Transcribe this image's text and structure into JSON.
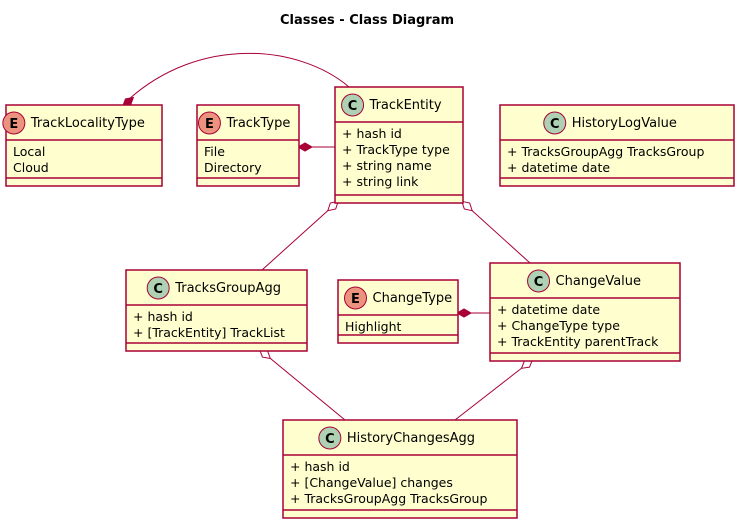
{
  "title": "Classes - Class Diagram",
  "colors": {
    "box_fill": "#FEFECE",
    "border": "#A80036",
    "class_badge": "#ADD1B2",
    "enum_badge": "#EB937F"
  },
  "nodes": [
    {
      "id": "TrackLocalityType",
      "kind": "enum",
      "badge": "E",
      "name": "TrackLocalityType",
      "members": [
        "Local",
        "Cloud"
      ]
    },
    {
      "id": "TrackType",
      "kind": "enum",
      "badge": "E",
      "name": "TrackType",
      "members": [
        "File",
        "Directory"
      ]
    },
    {
      "id": "TrackEntity",
      "kind": "class",
      "badge": "C",
      "name": "TrackEntity",
      "members": [
        "+ hash id",
        "+ TrackType type",
        "+ string name",
        "+ string link"
      ]
    },
    {
      "id": "HistoryLogValue",
      "kind": "class",
      "badge": "C",
      "name": "HistoryLogValue",
      "members": [
        "+ TracksGroupAgg TracksGroup",
        "+ datetime date"
      ]
    },
    {
      "id": "TracksGroupAgg",
      "kind": "class",
      "badge": "C",
      "name": "TracksGroupAgg",
      "members": [
        "+ hash id",
        "+ [TrackEntity] TrackList"
      ]
    },
    {
      "id": "ChangeType",
      "kind": "enum",
      "badge": "E",
      "name": "ChangeType",
      "members": [
        "Highlight"
      ]
    },
    {
      "id": "ChangeValue",
      "kind": "class",
      "badge": "C",
      "name": "ChangeValue",
      "members": [
        "+ datetime date",
        "+ ChangeType type",
        "+ TrackEntity parentTrack"
      ]
    },
    {
      "id": "HistoryChangesAgg",
      "kind": "class",
      "badge": "C",
      "name": "HistoryChangesAgg",
      "members": [
        "+ hash id",
        "+ [ChangeValue] changes",
        "+ TracksGroupAgg TracksGroup"
      ]
    }
  ],
  "edges": [
    {
      "from": "TrackLocalityType",
      "to": "TrackEntity",
      "kind": "composition"
    },
    {
      "from": "TrackType",
      "to": "TrackEntity",
      "kind": "composition"
    },
    {
      "from": "TrackEntity",
      "to": "TracksGroupAgg",
      "kind": "aggregation"
    },
    {
      "from": "TrackEntity",
      "to": "ChangeValue",
      "kind": "aggregation"
    },
    {
      "from": "ChangeType",
      "to": "ChangeValue",
      "kind": "composition"
    },
    {
      "from": "TracksGroupAgg",
      "to": "HistoryChangesAgg",
      "kind": "aggregation"
    },
    {
      "from": "ChangeValue",
      "to": "HistoryChangesAgg",
      "kind": "aggregation"
    }
  ]
}
